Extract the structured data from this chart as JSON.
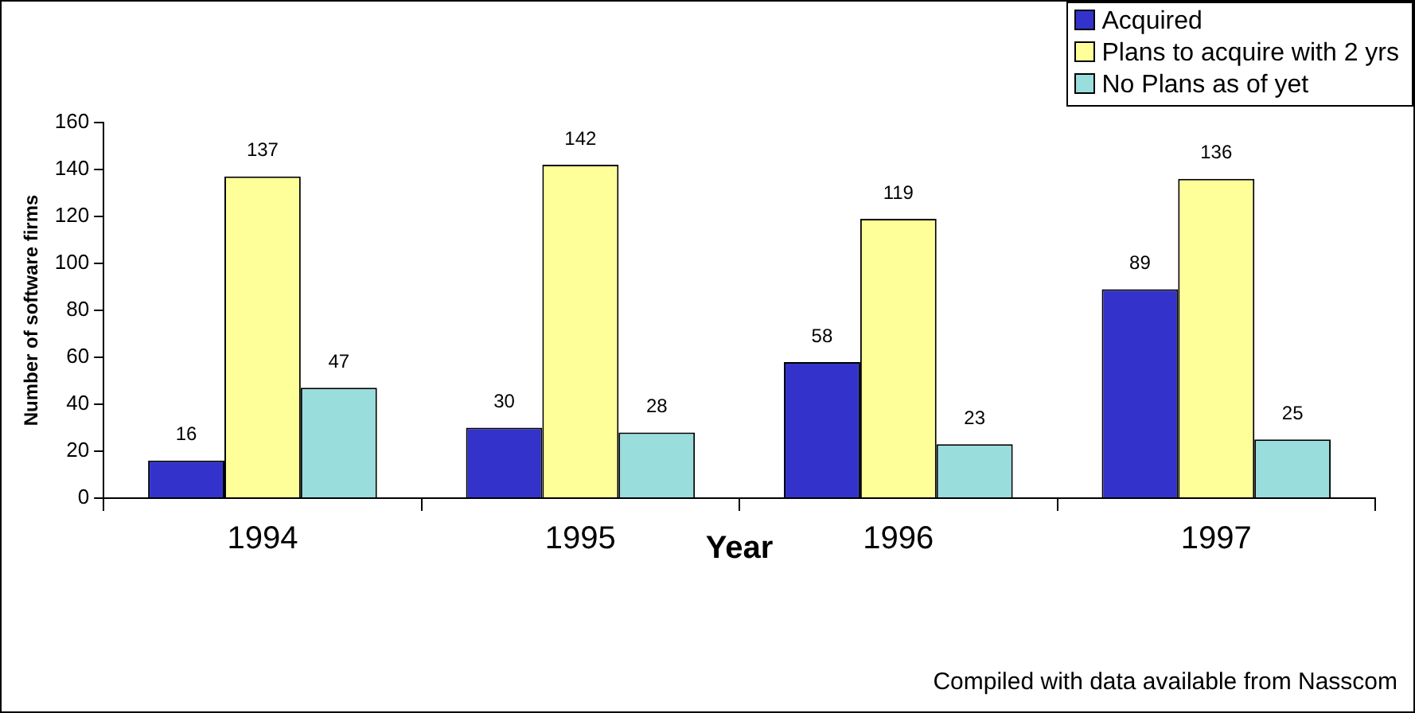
{
  "chart_data": {
    "type": "bar",
    "categories": [
      "1994",
      "1995",
      "1996",
      "1997"
    ],
    "series": [
      {
        "name": "Acquired",
        "color": "#3333cc",
        "values": [
          16,
          30,
          58,
          89
        ]
      },
      {
        "name": "Plans to acquire with 2 yrs",
        "color": "#ffff99",
        "values": [
          137,
          142,
          119,
          136
        ]
      },
      {
        "name": "No Plans as of yet",
        "color": "#99dddd",
        "values": [
          47,
          28,
          23,
          25
        ]
      }
    ],
    "xlabel": "Year",
    "ylabel": "Number of software firms",
    "ylim": [
      0,
      160
    ],
    "yticks": [
      0,
      20,
      40,
      60,
      80,
      100,
      120,
      140,
      160
    ],
    "grid": false,
    "legend": "top right",
    "data_labels": true,
    "annotations": [
      "Compiled with data available from Nasscom"
    ]
  }
}
